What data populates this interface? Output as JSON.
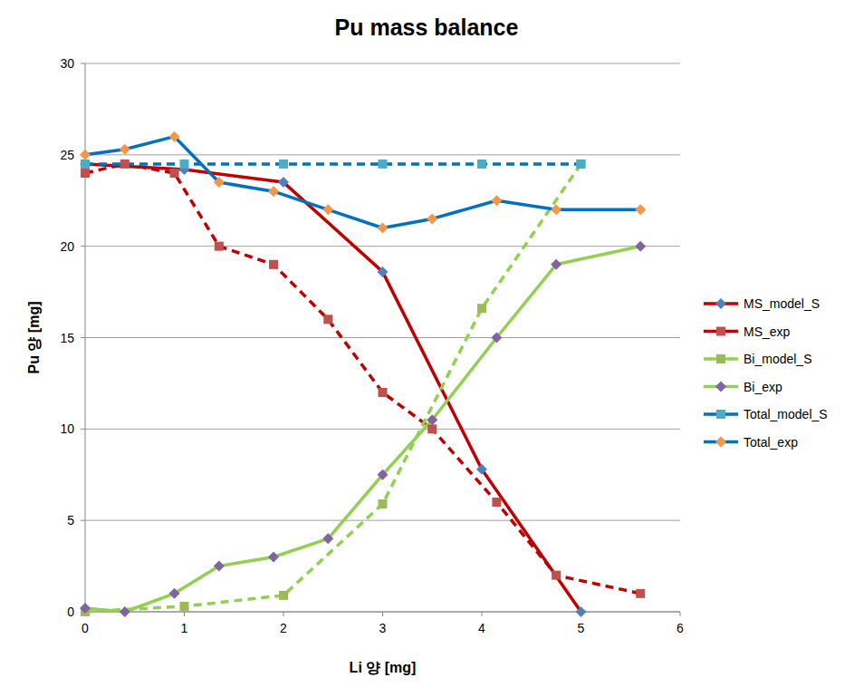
{
  "chart_data": {
    "type": "line",
    "title": "Pu mass balance",
    "x_label": "Li 양 [mg]",
    "y_label": "Pu 양 [mg]",
    "xlim": [
      0,
      6
    ],
    "xticks": [
      0,
      1,
      2,
      3,
      4,
      5,
      6
    ],
    "ylim": [
      0,
      30
    ],
    "yticks": [
      0,
      5,
      10,
      15,
      20,
      25,
      30
    ],
    "grid": true,
    "legend": "right",
    "series": [
      {
        "name": "MS_model_S",
        "color": "#c00000",
        "marker": "diamond",
        "line_style": "solid",
        "x": [
          0,
          1,
          2,
          3,
          4,
          5
        ],
        "values": [
          24.5,
          24.2,
          23.5,
          18.6,
          7.8,
          0
        ]
      },
      {
        "name": "MS_exp",
        "color": "#c00000",
        "marker": "square",
        "line_style": "dashed",
        "x": [
          0,
          0.4,
          0.9,
          1.35,
          1.9,
          2.45,
          3.0,
          3.5,
          4.15,
          4.75,
          5.6
        ],
        "values": [
          24,
          24.5,
          24,
          20,
          19,
          16,
          12,
          10,
          6,
          2,
          1
        ]
      },
      {
        "name": "Bi_model_S",
        "color": "#92d050",
        "marker": "square",
        "line_style": "dashed",
        "x": [
          0,
          1,
          2,
          3,
          4,
          5
        ],
        "values": [
          0,
          0.3,
          0.9,
          5.9,
          16.6,
          24.5
        ]
      },
      {
        "name": "Bi_exp",
        "color": "#92d050",
        "marker": "diamond",
        "line_style": "solid",
        "x": [
          0,
          0.4,
          0.9,
          1.35,
          1.9,
          2.45,
          3.0,
          3.5,
          4.15,
          4.75,
          5.6
        ],
        "values": [
          0.2,
          0,
          1,
          2.5,
          3,
          4,
          7.5,
          10.5,
          15,
          19,
          20
        ]
      },
      {
        "name": "Total_model_S",
        "color": "#0070c0",
        "marker": "square",
        "line_style": "dashed",
        "x": [
          0,
          1,
          2,
          3,
          4,
          5
        ],
        "values": [
          24.5,
          24.5,
          24.5,
          24.5,
          24.5,
          24.5
        ]
      },
      {
        "name": "Total_exp",
        "color": "#0070c0",
        "marker": "diamond",
        "line_style": "solid",
        "x": [
          0,
          0.4,
          0.9,
          1.35,
          1.9,
          2.45,
          3.0,
          3.5,
          4.15,
          4.75,
          5.6
        ],
        "values": [
          25,
          25.3,
          26,
          23.5,
          23,
          22,
          21,
          21.5,
          22.5,
          22,
          22
        ]
      }
    ]
  }
}
